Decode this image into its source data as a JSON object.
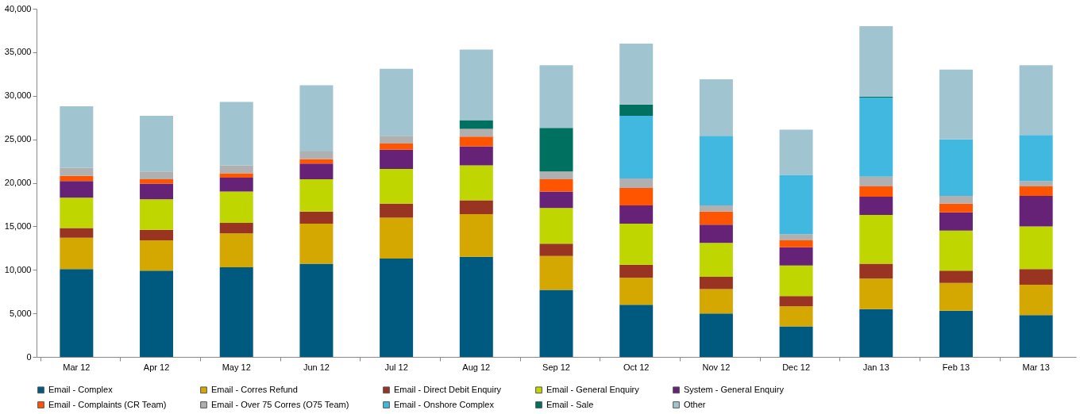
{
  "chart_data": {
    "type": "bar",
    "stacked": true,
    "categories": [
      "Mar 12",
      "Apr 12",
      "May 12",
      "Jun 12",
      "Jul 12",
      "Aug 12",
      "Sep 12",
      "Oct 12",
      "Nov 12",
      "Dec 12",
      "Jan 13",
      "Feb 13",
      "Mar 13"
    ],
    "series": [
      {
        "name": "Email - Complex",
        "color": "#005a80",
        "values": [
          10100,
          9900,
          10300,
          10700,
          11300,
          11500,
          7700,
          6000,
          5000,
          3500,
          5500,
          5300,
          4800
        ]
      },
      {
        "name": "Email - Corres Refund",
        "color": "#d4a800",
        "values": [
          3600,
          3500,
          3900,
          4600,
          4700,
          4900,
          3900,
          3100,
          2800,
          2300,
          3500,
          3200,
          3500
        ]
      },
      {
        "name": "Email - Direct Debit Enquiry",
        "color": "#993322",
        "values": [
          1100,
          1200,
          1200,
          1400,
          1600,
          1600,
          1400,
          1500,
          1400,
          1200,
          1700,
          1400,
          1800
        ]
      },
      {
        "name": "Email - General Enquiry",
        "color": "#bfd600",
        "values": [
          3500,
          3500,
          3600,
          3700,
          4000,
          4000,
          4100,
          4700,
          3900,
          3500,
          5600,
          4600,
          4900
        ]
      },
      {
        "name": "System - General Enquiry",
        "color": "#662277",
        "values": [
          1900,
          1800,
          1600,
          1800,
          2200,
          2200,
          1900,
          2100,
          2100,
          2100,
          2100,
          2100,
          3500
        ]
      },
      {
        "name": "Email - Complaints (CR Team)",
        "color": "#ff5500",
        "values": [
          600,
          500,
          500,
          500,
          700,
          1100,
          1400,
          2000,
          1500,
          800,
          1200,
          1000,
          1100
        ]
      },
      {
        "name": "Email - Over 75 Corres (O75 Team)",
        "color": "#b0b0b0",
        "values": [
          900,
          900,
          900,
          900,
          900,
          900,
          900,
          1100,
          700,
          700,
          1100,
          900,
          600
        ]
      },
      {
        "name": "Email - Onshore Complex",
        "color": "#40b8e0",
        "values": [
          0,
          0,
          0,
          0,
          0,
          0,
          0,
          7200,
          8000,
          6800,
          9100,
          6500,
          5300
        ]
      },
      {
        "name": "Email - Sale",
        "color": "#007060",
        "values": [
          0,
          0,
          0,
          0,
          0,
          1000,
          5000,
          1300,
          0,
          0,
          100,
          0,
          0
        ]
      },
      {
        "name": "Other",
        "color": "#a0c4d0",
        "values": [
          7100,
          6400,
          7300,
          7600,
          7700,
          8100,
          7200,
          7000,
          6500,
          5200,
          8100,
          8000,
          8000
        ]
      }
    ],
    "ylim": [
      0,
      40000
    ],
    "yticks": [
      0,
      {
        "value": 5000,
        "label": "5,000"
      },
      {
        "value": 10000,
        "label": "10,000"
      },
      {
        "value": 15000,
        "label": "15,000"
      },
      {
        "value": 20000,
        "label": "20,000"
      },
      {
        "value": 25000,
        "label": "25,000"
      },
      {
        "value": 30000,
        "label": "30,000"
      },
      {
        "value": 35000,
        "label": "35,000"
      },
      {
        "value": 40000,
        "label": "40,000"
      }
    ],
    "grid": false,
    "legend": "bottom"
  }
}
